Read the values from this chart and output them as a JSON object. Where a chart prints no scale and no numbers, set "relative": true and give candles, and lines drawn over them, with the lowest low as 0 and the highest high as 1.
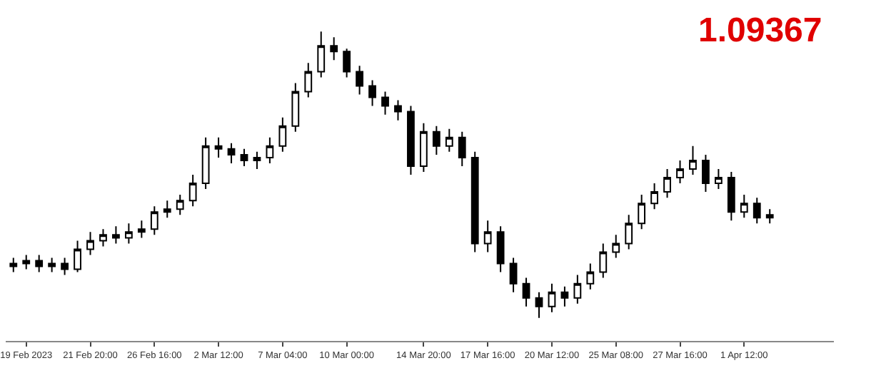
{
  "chart_data": {
    "type": "candlestick",
    "relative": true,
    "tick_labels": "x",
    "grid": false,
    "legend": false,
    "annotations": [
      "1.09367"
    ],
    "categories": [
      null,
      "19 Feb 2023",
      null,
      null,
      null,
      null,
      "21 Feb 20:00",
      null,
      null,
      null,
      null,
      "26 Feb 16:00",
      null,
      null,
      null,
      null,
      "2 Mar 12:00",
      null,
      null,
      null,
      null,
      "7 Mar 04:00",
      null,
      null,
      null,
      null,
      "10 Mar 00:00",
      null,
      null,
      null,
      null,
      null,
      "14 Mar 20:00",
      null,
      null,
      null,
      null,
      "17 Mar 16:00",
      null,
      null,
      null,
      null,
      "20 Mar 12:00",
      null,
      null,
      null,
      null,
      "25 Mar 08:00",
      null,
      null,
      null,
      null,
      "27 Mar 16:00",
      null,
      null,
      null,
      null,
      "1 Apr 12:00",
      null,
      null
    ],
    "ohlc": [
      [
        0.18,
        0.21,
        0.16,
        0.19
      ],
      [
        0.19,
        0.22,
        0.17,
        0.2
      ],
      [
        0.2,
        0.22,
        0.16,
        0.18
      ],
      [
        0.18,
        0.21,
        0.16,
        0.19
      ],
      [
        0.19,
        0.21,
        0.15,
        0.17
      ],
      [
        0.17,
        0.27,
        0.16,
        0.24
      ],
      [
        0.24,
        0.3,
        0.22,
        0.27
      ],
      [
        0.27,
        0.31,
        0.25,
        0.29
      ],
      [
        0.29,
        0.32,
        0.26,
        0.28
      ],
      [
        0.28,
        0.33,
        0.26,
        0.3
      ],
      [
        0.3,
        0.34,
        0.28,
        0.31
      ],
      [
        0.31,
        0.39,
        0.29,
        0.37
      ],
      [
        0.37,
        0.41,
        0.35,
        0.38
      ],
      [
        0.38,
        0.43,
        0.36,
        0.41
      ],
      [
        0.41,
        0.5,
        0.39,
        0.47
      ],
      [
        0.47,
        0.63,
        0.45,
        0.6
      ],
      [
        0.6,
        0.63,
        0.56,
        0.59
      ],
      [
        0.59,
        0.61,
        0.54,
        0.57
      ],
      [
        0.57,
        0.59,
        0.53,
        0.55
      ],
      [
        0.55,
        0.58,
        0.52,
        0.56
      ],
      [
        0.56,
        0.63,
        0.54,
        0.6
      ],
      [
        0.6,
        0.7,
        0.58,
        0.67
      ],
      [
        0.67,
        0.82,
        0.65,
        0.79
      ],
      [
        0.79,
        0.89,
        0.77,
        0.86
      ],
      [
        0.86,
        1.0,
        0.84,
        0.95
      ],
      [
        0.95,
        0.98,
        0.9,
        0.93
      ],
      [
        0.93,
        0.94,
        0.84,
        0.86
      ],
      [
        0.86,
        0.88,
        0.78,
        0.81
      ],
      [
        0.81,
        0.83,
        0.74,
        0.77
      ],
      [
        0.77,
        0.79,
        0.71,
        0.74
      ],
      [
        0.74,
        0.76,
        0.69,
        0.72
      ],
      [
        0.72,
        0.74,
        0.5,
        0.53
      ],
      [
        0.53,
        0.68,
        0.51,
        0.65
      ],
      [
        0.65,
        0.67,
        0.57,
        0.6
      ],
      [
        0.6,
        0.66,
        0.58,
        0.63
      ],
      [
        0.63,
        0.65,
        0.53,
        0.56
      ],
      [
        0.56,
        0.58,
        0.23,
        0.26
      ],
      [
        0.26,
        0.34,
        0.23,
        0.3
      ],
      [
        0.3,
        0.32,
        0.16,
        0.19
      ],
      [
        0.19,
        0.21,
        0.09,
        0.12
      ],
      [
        0.12,
        0.14,
        0.04,
        0.07
      ],
      [
        0.07,
        0.09,
        0.0,
        0.04
      ],
      [
        0.04,
        0.12,
        0.02,
        0.09
      ],
      [
        0.09,
        0.11,
        0.04,
        0.07
      ],
      [
        0.07,
        0.15,
        0.05,
        0.12
      ],
      [
        0.12,
        0.19,
        0.1,
        0.16
      ],
      [
        0.16,
        0.26,
        0.14,
        0.23
      ],
      [
        0.23,
        0.29,
        0.21,
        0.26
      ],
      [
        0.26,
        0.36,
        0.24,
        0.33
      ],
      [
        0.33,
        0.43,
        0.31,
        0.4
      ],
      [
        0.4,
        0.47,
        0.38,
        0.44
      ],
      [
        0.44,
        0.52,
        0.42,
        0.49
      ],
      [
        0.49,
        0.55,
        0.47,
        0.52
      ],
      [
        0.52,
        0.6,
        0.5,
        0.55
      ],
      [
        0.55,
        0.57,
        0.44,
        0.47
      ],
      [
        0.47,
        0.52,
        0.45,
        0.49
      ],
      [
        0.49,
        0.51,
        0.34,
        0.37
      ],
      [
        0.37,
        0.43,
        0.35,
        0.4
      ],
      [
        0.4,
        0.42,
        0.33,
        0.35
      ],
      [
        0.35,
        0.38,
        0.33,
        0.36
      ]
    ]
  }
}
